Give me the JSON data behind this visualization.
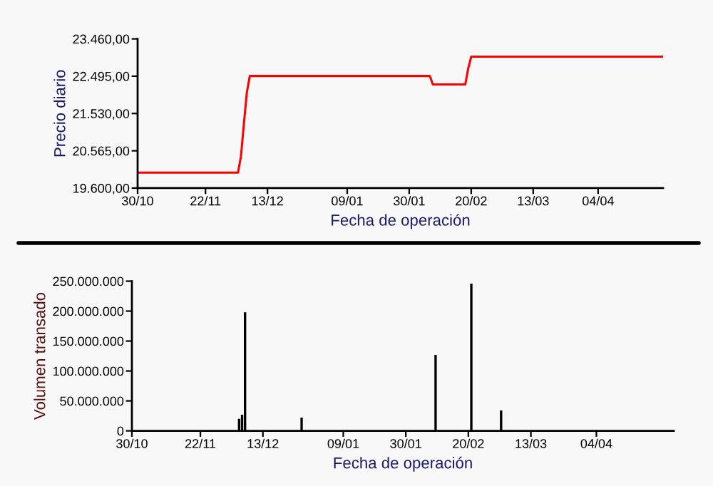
{
  "chart_data": [
    {
      "type": "line",
      "xlabel": "Fecha de operación",
      "ylabel": "Precio diario",
      "xlim": [
        "2000-10-30",
        "2001-04-26"
      ],
      "xticks": [
        {
          "value": "2000-10-30",
          "label": "30/10"
        },
        {
          "value": "2000-11-22",
          "label": "22/11"
        },
        {
          "value": "2000-12-13",
          "label": "13/12"
        },
        {
          "value": "2001-01-09",
          "label": "09/01"
        },
        {
          "value": "2001-01-30",
          "label": "30/01"
        },
        {
          "value": "2001-02-20",
          "label": "20/02"
        },
        {
          "value": "2001-03-13",
          "label": "13/03"
        },
        {
          "value": "2001-04-04",
          "label": "04/04"
        }
      ],
      "ylim": [
        19600,
        23460
      ],
      "yticks": [
        {
          "value": 19600,
          "label": "19.600,00"
        },
        {
          "value": 20565,
          "label": "20.565,00"
        },
        {
          "value": 21530,
          "label": "21.530,00"
        },
        {
          "value": 22495,
          "label": "22.495,00"
        },
        {
          "value": 23460,
          "label": "23.460,00"
        }
      ],
      "grid": false,
      "series": [
        {
          "color": "#ff0000",
          "x": [
            "2000-10-30",
            "2000-12-03",
            "2000-12-04",
            "2000-12-05",
            "2000-12-06",
            "2000-12-07",
            "2001-02-06",
            "2001-02-07",
            "2001-02-18",
            "2001-02-19",
            "2001-02-20",
            "2001-04-26"
          ],
          "values": [
            20000,
            20000,
            20420,
            21260,
            22070,
            22500,
            22500,
            22280,
            22280,
            22700,
            23000,
            23000
          ]
        }
      ]
    },
    {
      "type": "bar",
      "xlabel": "Fecha de operación",
      "ylabel": "Volumen transado",
      "xlim": [
        "2000-10-30",
        "2001-04-30"
      ],
      "xticks": [
        {
          "value": "2000-10-30",
          "label": "30/10"
        },
        {
          "value": "2000-11-22",
          "label": "22/11"
        },
        {
          "value": "2000-12-13",
          "label": "13/12"
        },
        {
          "value": "2001-01-09",
          "label": "09/01"
        },
        {
          "value": "2001-01-30",
          "label": "30/01"
        },
        {
          "value": "2001-02-20",
          "label": "20/02"
        },
        {
          "value": "2001-03-13",
          "label": "13/03"
        },
        {
          "value": "2001-04-04",
          "label": "04/04"
        }
      ],
      "ylim": [
        0,
        250000000
      ],
      "yticks": [
        0,
        {
          "value": 50000000,
          "label": "50.000.000"
        },
        {
          "value": 100000000,
          "label": "100.000.000"
        },
        {
          "value": 150000000,
          "label": "150.000.000"
        },
        {
          "value": 200000000,
          "label": "200.000.000"
        },
        {
          "value": 250000000,
          "label": "250.000.000"
        }
      ],
      "grid": false,
      "series": [
        {
          "color": "#000000",
          "x": [
            "2000-12-05",
            "2000-12-06",
            "2000-12-07",
            "2000-12-26",
            "2001-02-09",
            "2001-02-21",
            "2001-03-03"
          ],
          "values": [
            20000000,
            27000000,
            198000000,
            22000000,
            127000000,
            246000000,
            34000000
          ]
        }
      ]
    }
  ]
}
